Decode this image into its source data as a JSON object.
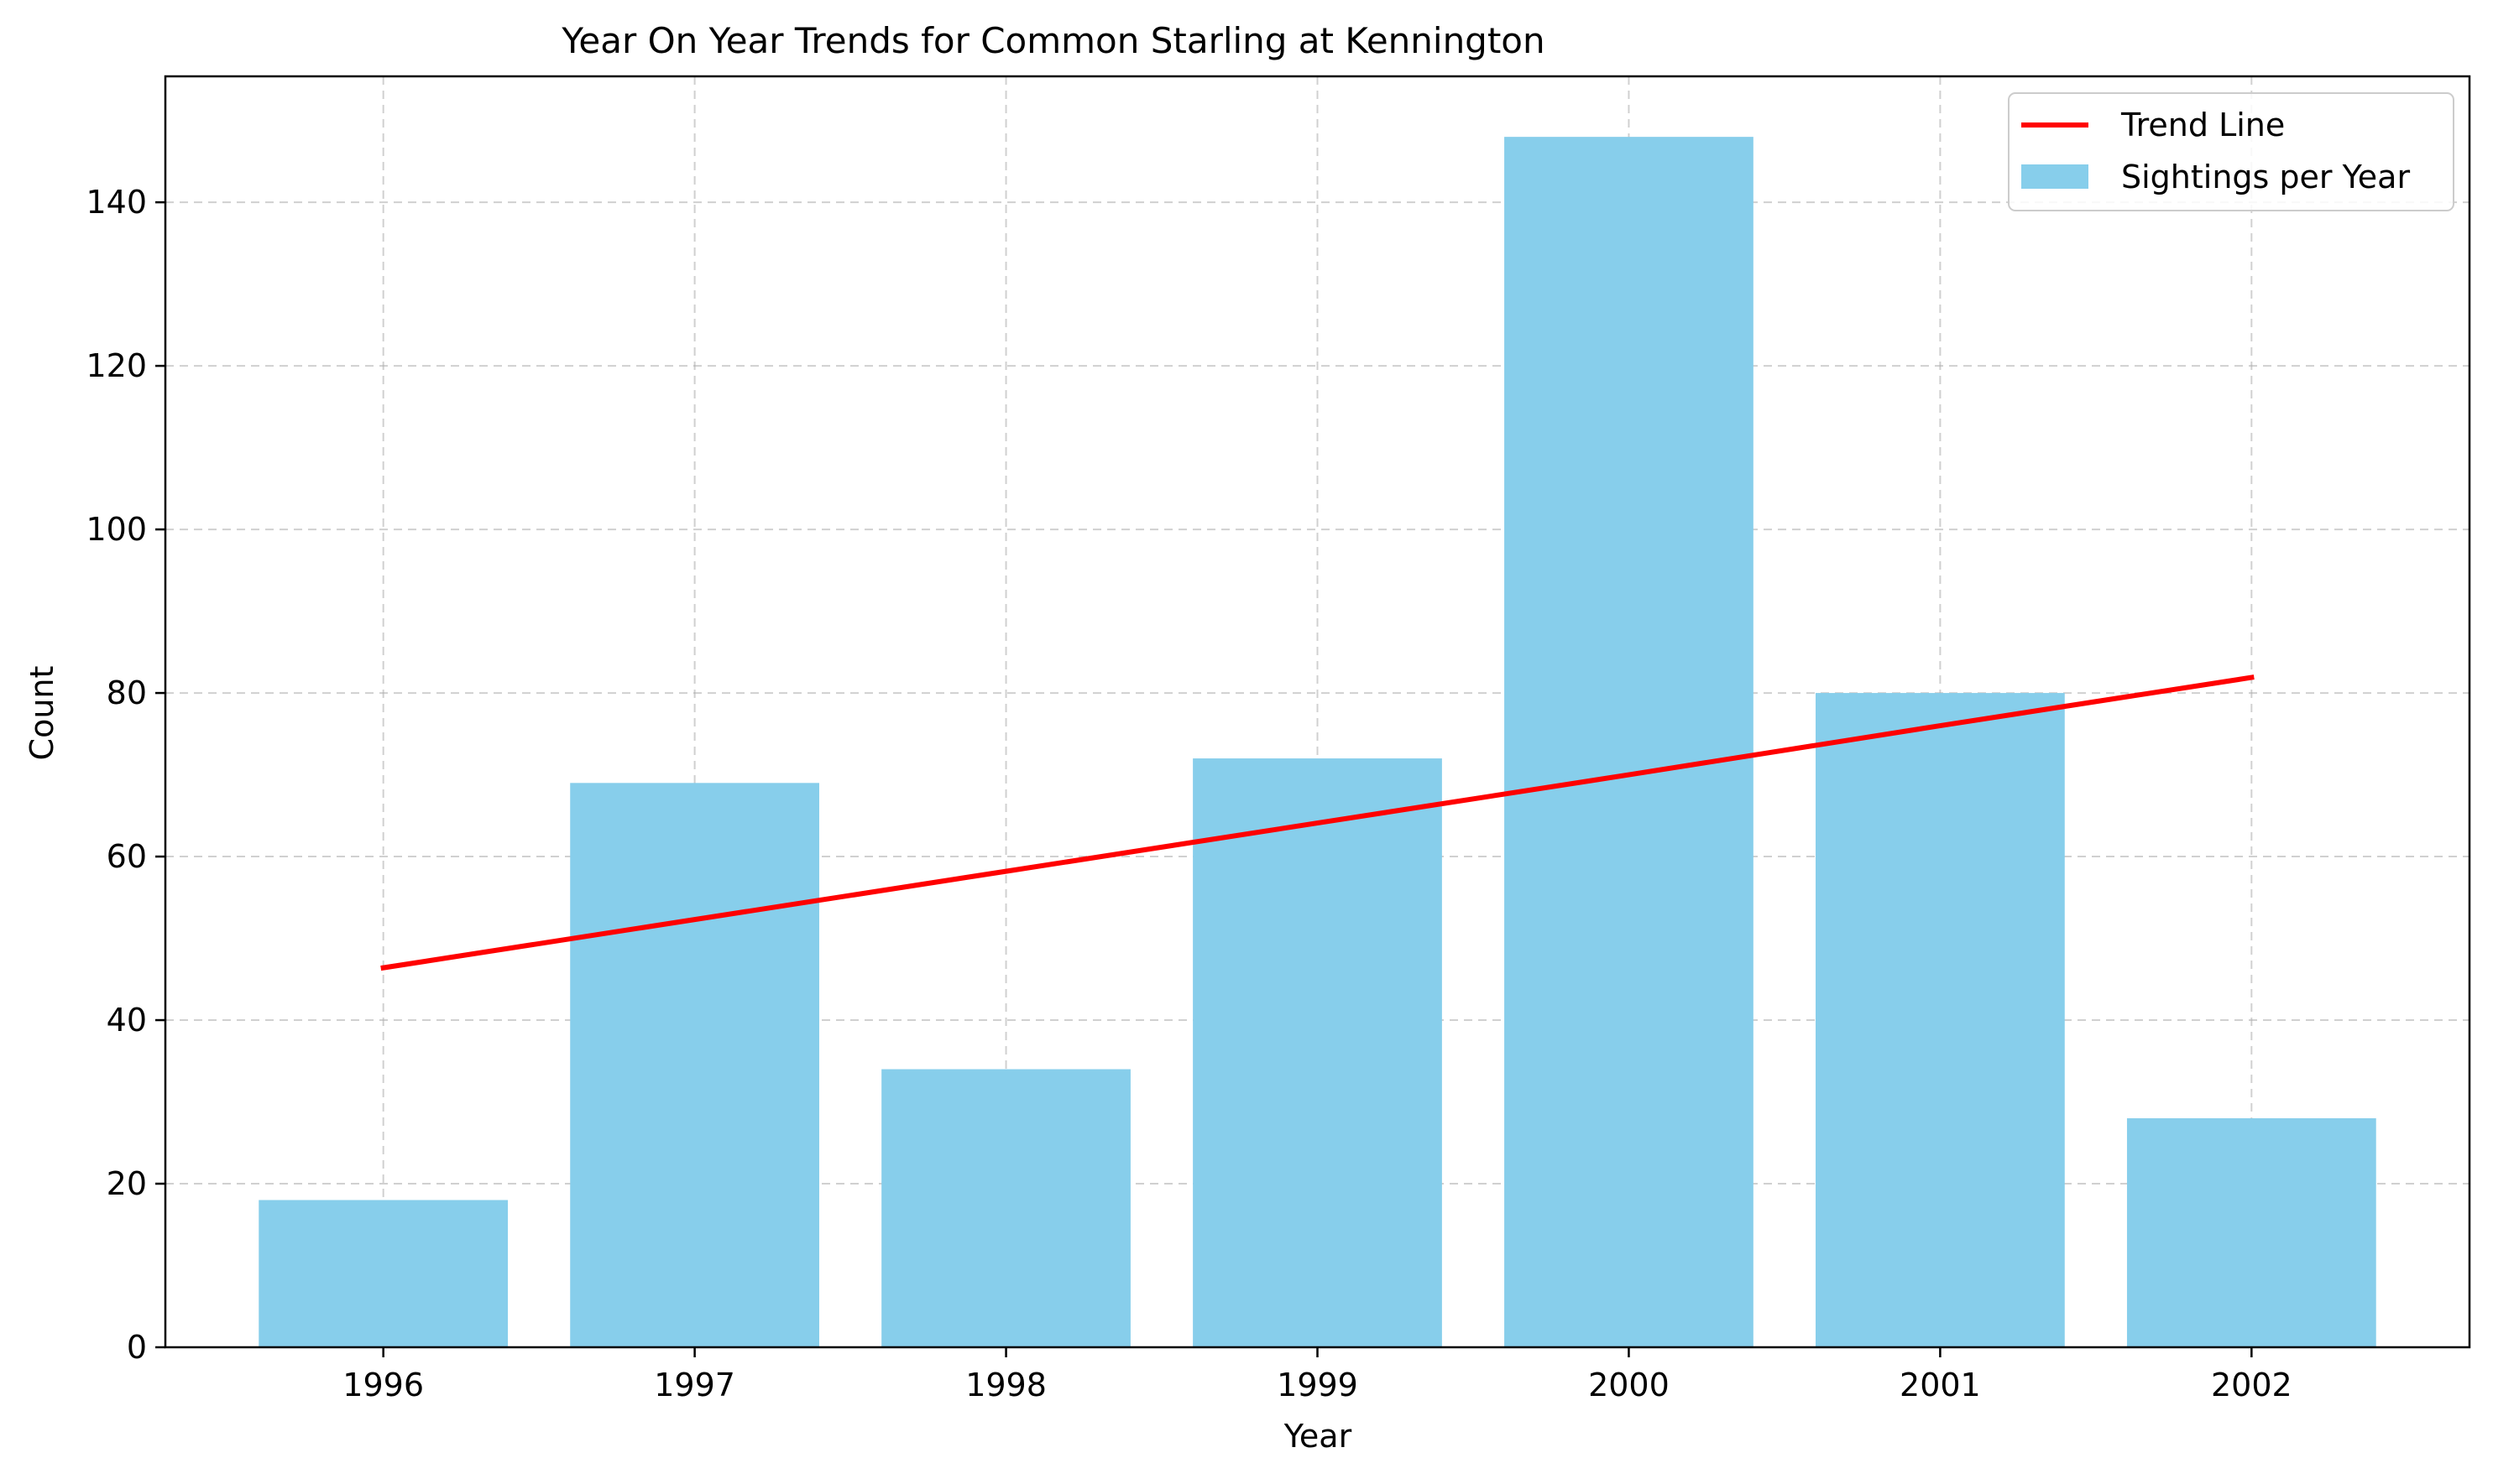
{
  "chart_data": {
    "type": "bar",
    "title": "Year On Year Trends for Common Starling at Kennington",
    "xlabel": "Year",
    "ylabel": "Count",
    "categories": [
      "1996",
      "1997",
      "1998",
      "1999",
      "2000",
      "2001",
      "2002"
    ],
    "series": [
      {
        "name": "Sightings per Year",
        "type": "bar",
        "values": [
          18,
          69,
          34,
          72,
          148,
          80,
          28
        ],
        "color": "#87ceeb"
      },
      {
        "name": "Trend Line",
        "type": "line",
        "values": [
          46.4,
          52.3,
          58.2,
          64.1,
          70.0,
          76.0,
          81.9
        ],
        "color": "#ff0000"
      }
    ],
    "ylim": [
      0,
      155.4
    ],
    "yticks": [
      0,
      20,
      40,
      60,
      80,
      100,
      120,
      140
    ],
    "grid": true,
    "grid_style": "dashed",
    "legend_position": "top-right"
  }
}
